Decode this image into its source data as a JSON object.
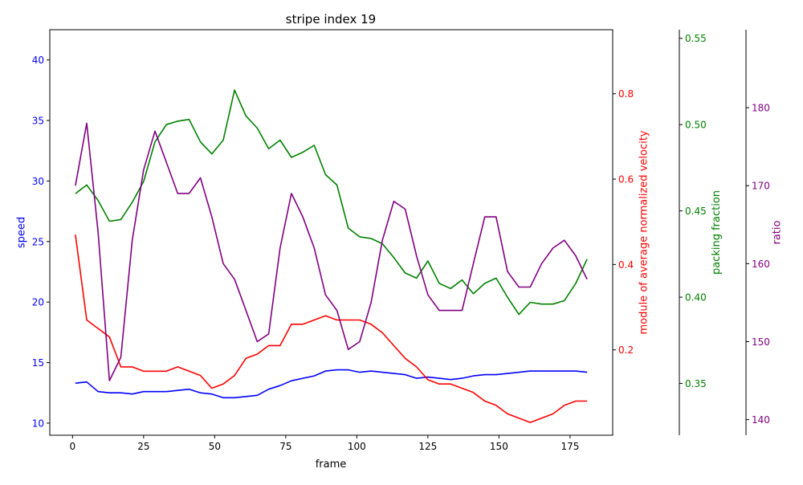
{
  "chart_data": {
    "type": "line",
    "title": "stripe index 19",
    "xlabel": "frame",
    "xlim": [
      -8,
      190
    ],
    "x_ticks": [
      0,
      25,
      50,
      75,
      100,
      125,
      150,
      175
    ],
    "x": [
      1,
      5,
      9,
      13,
      17,
      21,
      25,
      29,
      33,
      37,
      41,
      45,
      49,
      53,
      57,
      61,
      65,
      69,
      73,
      77,
      81,
      85,
      89,
      93,
      97,
      101,
      105,
      109,
      113,
      117,
      121,
      125,
      129,
      133,
      137,
      141,
      145,
      149,
      153,
      157,
      161,
      165,
      169,
      173,
      177,
      181
    ],
    "axes": [
      {
        "label": "speed",
        "side": "left",
        "color": "#0000ff",
        "lim": [
          9.0,
          42.5
        ],
        "ticks": [
          10,
          15,
          20,
          25,
          30,
          35,
          40
        ]
      },
      {
        "label": "module of average normalized velocity",
        "side": "right",
        "color": "#ff0000",
        "lim": [
          0.0,
          0.95
        ],
        "ticks": [
          0.2,
          0.4,
          0.6,
          0.8
        ]
      },
      {
        "label": "packing fraction",
        "side": "right",
        "color": "#008000",
        "lim": [
          0.32,
          0.555
        ],
        "ticks": [
          0.35,
          0.4,
          0.45,
          0.5,
          0.55
        ]
      },
      {
        "label": "ratio",
        "side": "right",
        "color": "#800080",
        "lim": [
          138,
          190
        ],
        "ticks": [
          140,
          150,
          160,
          170,
          180
        ]
      }
    ],
    "series": [
      {
        "name": "speed",
        "axis": 0,
        "color": "#0000ff",
        "values": [
          13.3,
          13.4,
          12.6,
          12.5,
          12.5,
          12.4,
          12.6,
          12.6,
          12.6,
          12.7,
          12.8,
          12.5,
          12.4,
          12.1,
          12.1,
          12.2,
          12.3,
          12.8,
          13.1,
          13.5,
          13.7,
          13.9,
          14.3,
          14.4,
          14.4,
          14.2,
          14.3,
          14.2,
          14.1,
          14.0,
          13.7,
          13.8,
          13.7,
          13.6,
          13.7,
          13.9,
          14.0,
          14.0,
          14.1,
          14.2,
          14.3,
          14.3,
          14.3,
          14.3,
          14.3,
          14.2
        ]
      },
      {
        "name": "module of average normalized velocity",
        "axis": 1,
        "color": "#ff0000",
        "values": [
          0.47,
          0.27,
          0.25,
          0.23,
          0.16,
          0.16,
          0.15,
          0.15,
          0.15,
          0.16,
          0.15,
          0.14,
          0.11,
          0.12,
          0.14,
          0.18,
          0.19,
          0.21,
          0.21,
          0.26,
          0.26,
          0.27,
          0.28,
          0.27,
          0.27,
          0.27,
          0.26,
          0.24,
          0.21,
          0.18,
          0.16,
          0.13,
          0.12,
          0.12,
          0.11,
          0.1,
          0.08,
          0.07,
          0.05,
          0.04,
          0.03,
          0.04,
          0.05,
          0.07,
          0.08,
          0.08
        ]
      },
      {
        "name": "packing fraction",
        "axis": 2,
        "color": "#008000",
        "values": [
          0.46,
          0.465,
          0.456,
          0.444,
          0.445,
          0.455,
          0.467,
          0.49,
          0.5,
          0.502,
          0.503,
          0.49,
          0.483,
          0.491,
          0.52,
          0.505,
          0.498,
          0.486,
          0.491,
          0.481,
          0.484,
          0.488,
          0.471,
          0.465,
          0.44,
          0.435,
          0.434,
          0.431,
          0.423,
          0.414,
          0.411,
          0.421,
          0.408,
          0.405,
          0.41,
          0.402,
          0.408,
          0.411,
          0.4,
          0.39,
          0.397,
          0.396,
          0.396,
          0.398,
          0.408,
          0.422
        ]
      },
      {
        "name": "ratio",
        "axis": 3,
        "color": "#800080",
        "values": [
          170,
          178,
          164,
          145,
          148,
          163,
          172,
          177,
          173,
          169,
          169,
          171,
          166,
          160,
          158,
          154,
          150,
          151,
          162,
          169,
          166,
          162,
          156,
          154,
          149,
          150,
          155,
          163,
          168,
          167,
          161,
          156,
          154,
          154,
          154,
          160,
          166,
          166,
          159,
          157,
          157,
          160,
          162,
          163,
          161,
          158
        ]
      }
    ]
  }
}
